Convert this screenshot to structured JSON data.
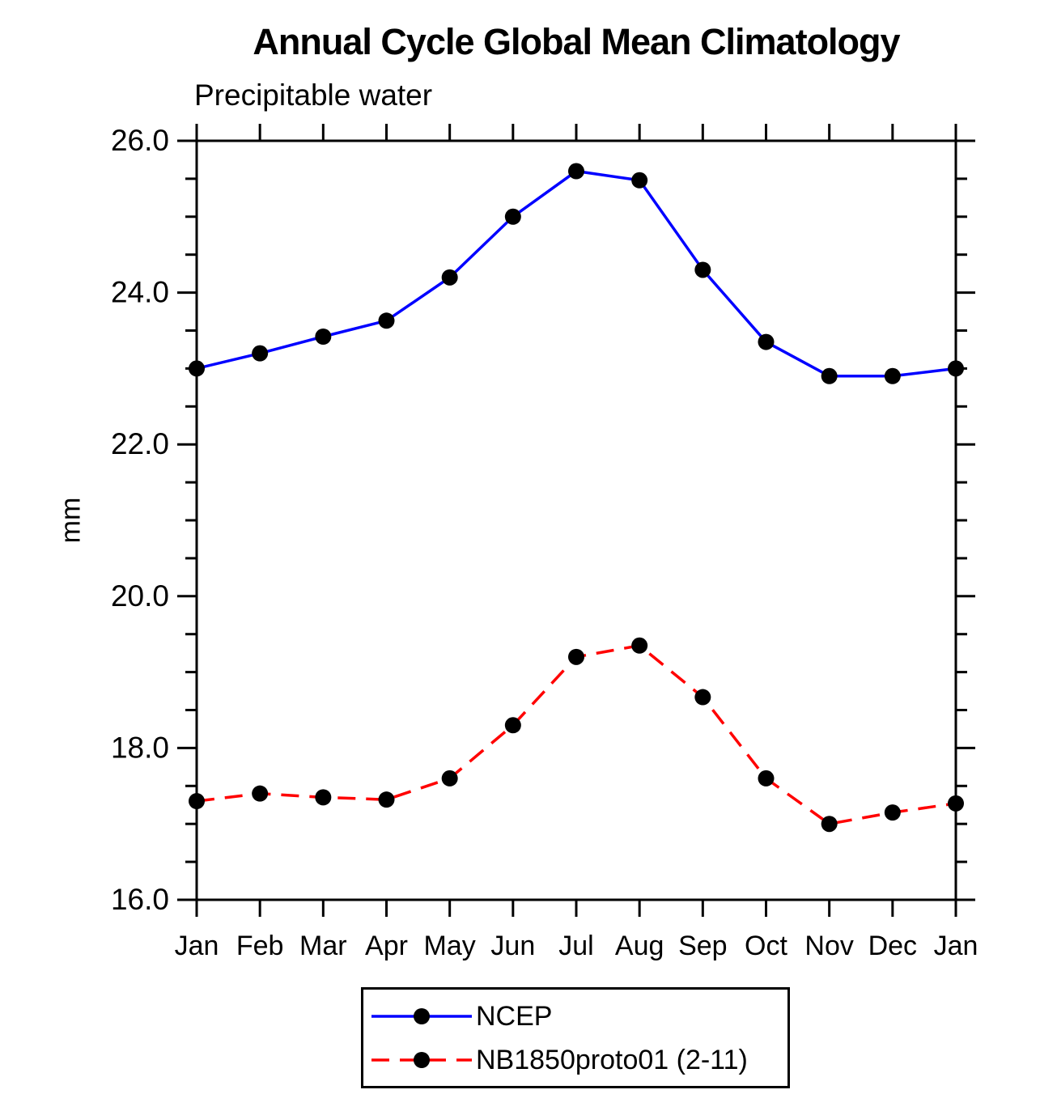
{
  "chart_data": {
    "type": "line",
    "title": "Annual Cycle Global Mean Climatology",
    "subtitle": "Precipitable water",
    "ylabel": "mm",
    "x_categories": [
      "Jan",
      "Feb",
      "Mar",
      "Apr",
      "May",
      "Jun",
      "Jul",
      "Aug",
      "Sep",
      "Oct",
      "Nov",
      "Dec",
      "Jan"
    ],
    "ylim": [
      16.0,
      26.0
    ],
    "y_major_tick_step": 2.0,
    "y_minor_tick_step": 0.5,
    "y_tick_labels": [
      "16.0",
      "18.0",
      "20.0",
      "22.0",
      "24.0",
      "26.0"
    ],
    "grid": false,
    "legend_position": "bottom",
    "axis_color": "#000000",
    "marker_color": "#000000",
    "series": [
      {
        "name": "NCEP",
        "color": "#0000ff",
        "style": "solid",
        "marker": "circle",
        "values": [
          23.0,
          23.2,
          23.42,
          23.63,
          24.2,
          25.0,
          25.6,
          25.48,
          24.3,
          23.35,
          22.9,
          22.9,
          23.0
        ]
      },
      {
        "name": "NB1850proto01 (2-11)",
        "color": "#ff0000",
        "style": "dashed",
        "marker": "circle",
        "values": [
          17.3,
          17.4,
          17.35,
          17.32,
          17.6,
          18.3,
          19.2,
          19.35,
          18.67,
          17.6,
          17.0,
          17.15,
          17.27
        ]
      }
    ]
  }
}
